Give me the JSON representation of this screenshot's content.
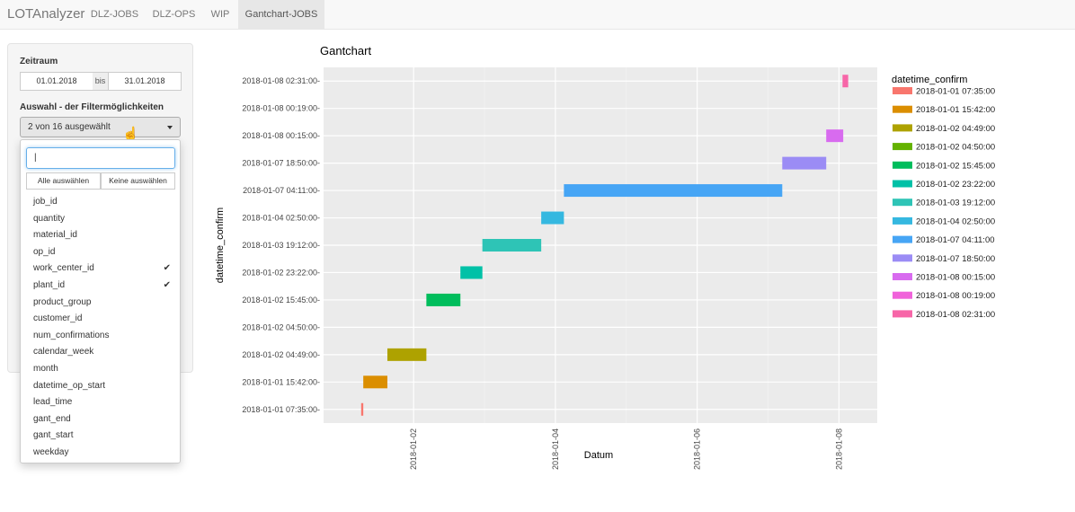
{
  "nav": {
    "brand": "LOTAnalyzer",
    "tabs": [
      {
        "label": "DLZ-JOBS"
      },
      {
        "label": "DLZ-OPS"
      },
      {
        "label": "WIP"
      },
      {
        "label": "Gantchart-JOBS"
      }
    ],
    "active_tab": "Gantchart-JOBS"
  },
  "sidebar": {
    "zeitraum_label": "Zeitraum",
    "date_from": "01.01.2018",
    "date_sep": "bis",
    "date_to": "31.01.2018",
    "filter_label": "Auswahl - der Filtermöglichkeiten",
    "select_text": "2 von 16 ausgewählt",
    "dropdown": {
      "search_value": "|",
      "select_all_label": "Alle auswählen",
      "deselect_all_label": "Keine auswählen",
      "items": [
        {
          "label": "job_id",
          "checked": false
        },
        {
          "label": "quantity",
          "checked": false
        },
        {
          "label": "material_id",
          "checked": false
        },
        {
          "label": "op_id",
          "checked": false
        },
        {
          "label": "work_center_id",
          "checked": true
        },
        {
          "label": "plant_id",
          "checked": true
        },
        {
          "label": "product_group",
          "checked": false
        },
        {
          "label": "customer_id",
          "checked": false
        },
        {
          "label": "num_confirmations",
          "checked": false
        },
        {
          "label": "calendar_week",
          "checked": false
        },
        {
          "label": "month",
          "checked": false
        },
        {
          "label": "datetime_op_start",
          "checked": false
        },
        {
          "label": "lead_time",
          "checked": false
        },
        {
          "label": "gant_end",
          "checked": false
        },
        {
          "label": "gant_start",
          "checked": false
        },
        {
          "label": "weekday",
          "checked": false
        }
      ],
      "check_glyph": "✔"
    }
  },
  "chart_data": {
    "type": "gantt",
    "title": "Gantchart",
    "xlabel": "Datum",
    "ylabel": "datetime_confirm",
    "legend_title": "datetime_confirm",
    "legend_position": "right",
    "x_ticks": [
      "2018-01-02",
      "2018-01-04",
      "2018-01-06",
      "2018-01-08"
    ],
    "xlim_days": [
      0.73,
      8.54
    ],
    "rows": [
      {
        "label": "2018-01-01 07:35:00",
        "start_day": 1.26,
        "end_day": 1.29,
        "color": "#F8766D"
      },
      {
        "label": "2018-01-01 15:42:00",
        "start_day": 1.29,
        "end_day": 1.63,
        "color": "#DB8E00"
      },
      {
        "label": "2018-01-02 04:49:00",
        "start_day": 1.63,
        "end_day": 2.18,
        "color": "#AEA200"
      },
      {
        "label": "2018-01-02 04:50:00",
        "start_day": null,
        "end_day": null,
        "color": "#64B200"
      },
      {
        "label": "2018-01-02 15:45:00",
        "start_day": 2.18,
        "end_day": 2.66,
        "color": "#00BD5C"
      },
      {
        "label": "2018-01-02 23:22:00",
        "start_day": 2.66,
        "end_day": 2.97,
        "color": "#00C1A7"
      },
      {
        "label": "2018-01-03 19:12:00",
        "start_day": 2.97,
        "end_day": 3.8,
        "color": "#00BADE"
      },
      {
        "label": "2018-01-04 02:50:00",
        "start_day": 3.8,
        "end_day": 4.12,
        "color": "#00A6FF"
      },
      {
        "label": "2018-01-07 04:11:00",
        "start_day": 4.12,
        "end_day": 7.2,
        "color": "#B385FF"
      },
      {
        "label": "2018-01-07 18:50:00",
        "start_day": 7.2,
        "end_day": 7.82,
        "color": "#EF67EB"
      },
      {
        "label": "2018-01-08 00:15:00",
        "start_day": 7.82,
        "end_day": 8.06,
        "color": "#FF63B6"
      },
      {
        "label": "2018-01-08 00:19:00",
        "start_day": null,
        "end_day": null,
        "color": "#FF61C3"
      },
      {
        "label": "2018-01-08 02:31:00",
        "start_day": 8.05,
        "end_day": 8.13,
        "color": "#FF68A1"
      }
    ],
    "legend": [
      {
        "label": "2018-01-01 07:35:00",
        "color": "#F8766D"
      },
      {
        "label": "2018-01-01 15:42:00",
        "color": "#DB8E00"
      },
      {
        "label": "2018-01-02 04:49:00",
        "color": "#AEA200"
      },
      {
        "label": "2018-01-02 04:50:00",
        "color": "#64B200"
      },
      {
        "label": "2018-01-02 15:45:00",
        "color": "#00BD5C"
      },
      {
        "label": "2018-01-02 23:22:00",
        "color": "#00C1A7"
      },
      {
        "label": "2018-01-03 19:12:00",
        "color": "#2EC4B6"
      },
      {
        "label": "2018-01-04 02:50:00",
        "color": "#35B8E0"
      },
      {
        "label": "2018-01-07 04:11:00",
        "color": "#46A5F5"
      },
      {
        "label": "2018-01-07 18:50:00",
        "color": "#9B8CF5"
      },
      {
        "label": "2018-01-08 00:15:00",
        "color": "#D86BEF"
      },
      {
        "label": "2018-01-08 00:19:00",
        "color": "#F062DA"
      },
      {
        "label": "2018-01-08 02:31:00",
        "color": "#F766A8"
      }
    ],
    "grid": true,
    "panel_background": "#EBEBEB"
  }
}
